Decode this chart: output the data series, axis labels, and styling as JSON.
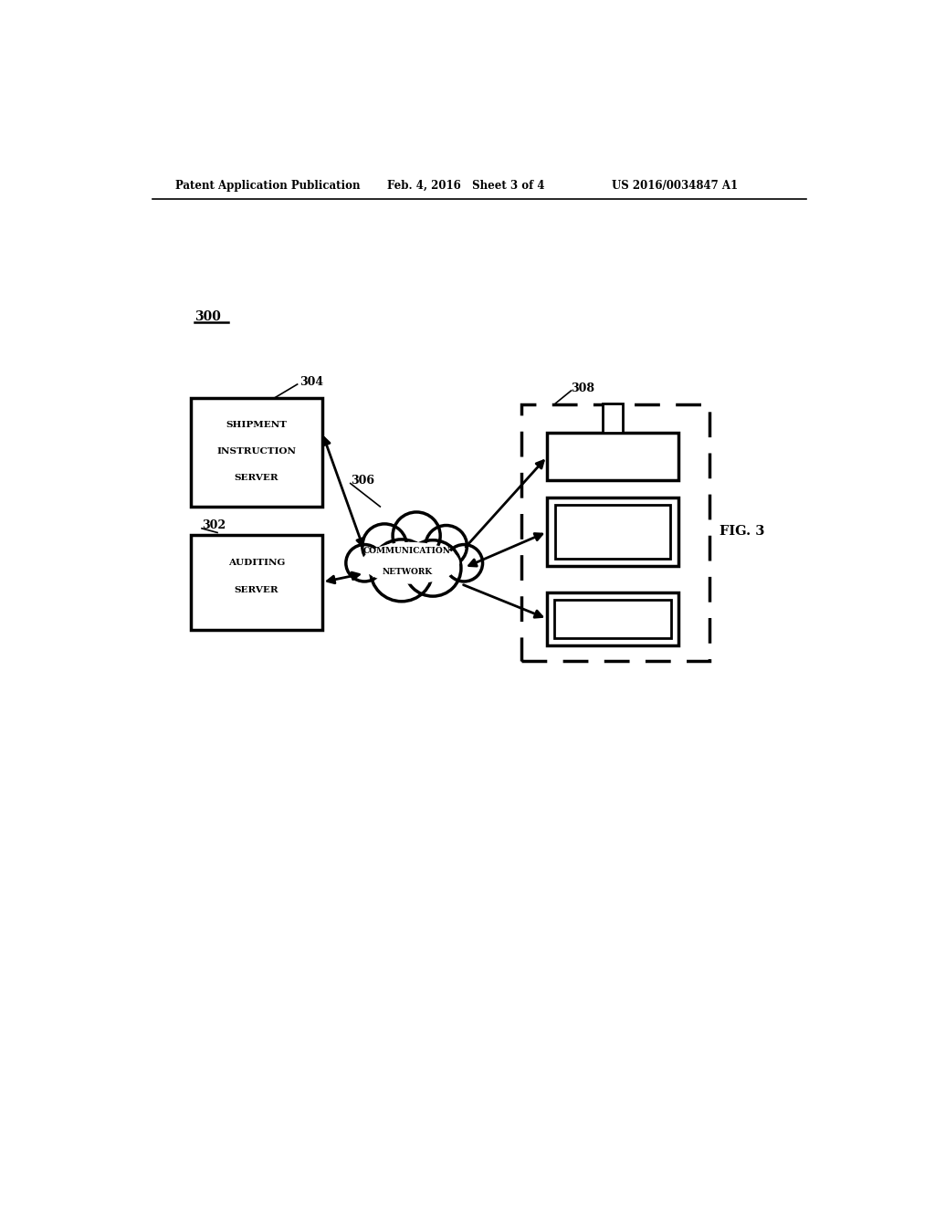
{
  "bg_color": "#ffffff",
  "header_left": "Patent Application Publication",
  "header_mid": "Feb. 4, 2016   Sheet 3 of 4",
  "header_right": "US 2016/0034847 A1",
  "fig_label": "FIG. 3",
  "diagram_label": "300",
  "label_302": "302",
  "label_304": "304",
  "label_306": "306",
  "label_308": "308",
  "box_shipment_lines": [
    "SHIPMENT",
    "INSTRUCTION",
    "SERVER"
  ],
  "box_auditing_lines": [
    "AUDITING",
    "SERVER"
  ],
  "cloud_lines": [
    "COMMUNICATION",
    "NETWORK"
  ]
}
